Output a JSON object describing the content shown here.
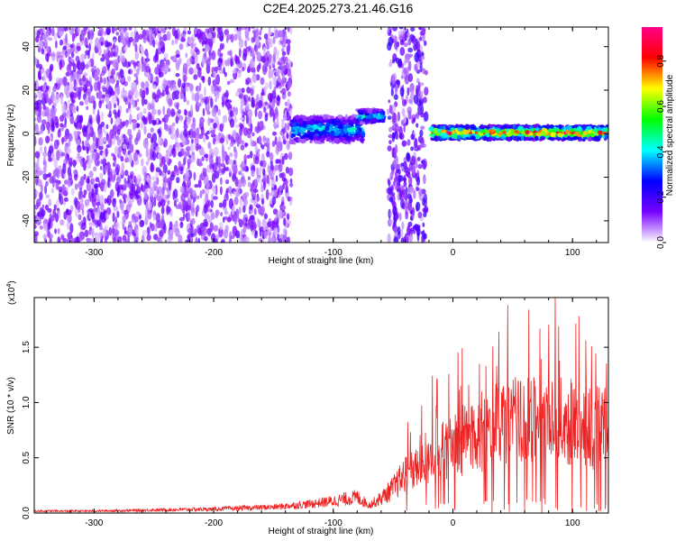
{
  "title": "C2E4.2025.273.21.46.G16",
  "chart_data": [
    {
      "type": "heatmap",
      "xlabel": "Height of straight line (km)",
      "ylabel": "Frequency (Hz)",
      "xlim": [
        -350,
        130
      ],
      "ylim": [
        -50,
        49
      ],
      "x_ticks": [
        -300,
        -200,
        -100,
        0,
        100
      ],
      "x_tick_labels": [
        "-300",
        "-200",
        "-100",
        "0",
        "100"
      ],
      "y_ticks": [
        -40,
        -20,
        0,
        20,
        40
      ],
      "y_tick_labels": [
        "-40",
        "-20",
        "0",
        "20",
        "40"
      ],
      "colorbar": {
        "label": "Normalized spectral amplitude",
        "range": [
          0,
          0.95
        ],
        "ticks": [
          0.0,
          0.2,
          0.4,
          0.6,
          0.8
        ],
        "tick_labels": [
          "0.0",
          "0.2",
          "0.4",
          "0.6",
          "0.8"
        ],
        "colors": [
          "#ffffff",
          "#7700ff",
          "#0000ff",
          "#00ffff",
          "#00ff00",
          "#ffff00",
          "#ff0000",
          "#ff0088"
        ]
      },
      "features": [
        {
          "x_range": [
            -350,
            -135
          ],
          "freq_center": 0,
          "freq_halfwidth": 50,
          "amplitude": 0.15,
          "kind": "broadband noise"
        },
        {
          "x_range": [
            -135,
            -75
          ],
          "freq_center": 2,
          "freq_halfwidth": 6,
          "amplitude": 0.45,
          "kind": "signal band"
        },
        {
          "x_range": [
            -80,
            -58
          ],
          "freq_center": 8,
          "freq_halfwidth": 3,
          "amplitude": 0.5,
          "kind": "signal band"
        },
        {
          "x_range": [
            -54,
            -22
          ],
          "freq_center": 0,
          "freq_halfwidth": 50,
          "amplitude": 0.2,
          "kind": "broadband noise"
        },
        {
          "x_range": [
            -18,
            130
          ],
          "freq_center": 0.5,
          "freq_halfwidth": 3,
          "amplitude": 0.9,
          "kind": "carrier line"
        }
      ]
    },
    {
      "type": "line",
      "xlabel": "Height of straight line (km)",
      "ylabel": "SNR (10 * v/v)",
      "y_multiplier": "(x10",
      "y_multiplier_exp": "4",
      "xlim": [
        -350,
        130
      ],
      "ylim": [
        0,
        1.95
      ],
      "x_ticks": [
        -300,
        -200,
        -100,
        0,
        100
      ],
      "x_tick_labels": [
        "-300",
        "-200",
        "-100",
        "0",
        "100"
      ],
      "y_ticks": [
        0.0,
        0.5,
        1.0,
        1.5
      ],
      "y_tick_labels": [
        "0.0",
        "0.5",
        "1.0",
        "1.5"
      ],
      "series_color": "#ee2222",
      "envelope": {
        "x": [
          -350,
          -300,
          -250,
          -200,
          -150,
          -120,
          -100,
          -90,
          -80,
          -70,
          -60,
          -50,
          -40,
          -30,
          -20,
          -10,
          0,
          20,
          40,
          60,
          80,
          100,
          110,
          120,
          130
        ],
        "snr": [
          0.02,
          0.02,
          0.03,
          0.04,
          0.06,
          0.09,
          0.12,
          0.14,
          0.16,
          0.08,
          0.15,
          0.25,
          0.38,
          0.45,
          0.52,
          0.6,
          0.68,
          0.8,
          0.9,
          0.92,
          0.93,
          0.9,
          0.88,
          0.86,
          0.85
        ]
      }
    }
  ]
}
